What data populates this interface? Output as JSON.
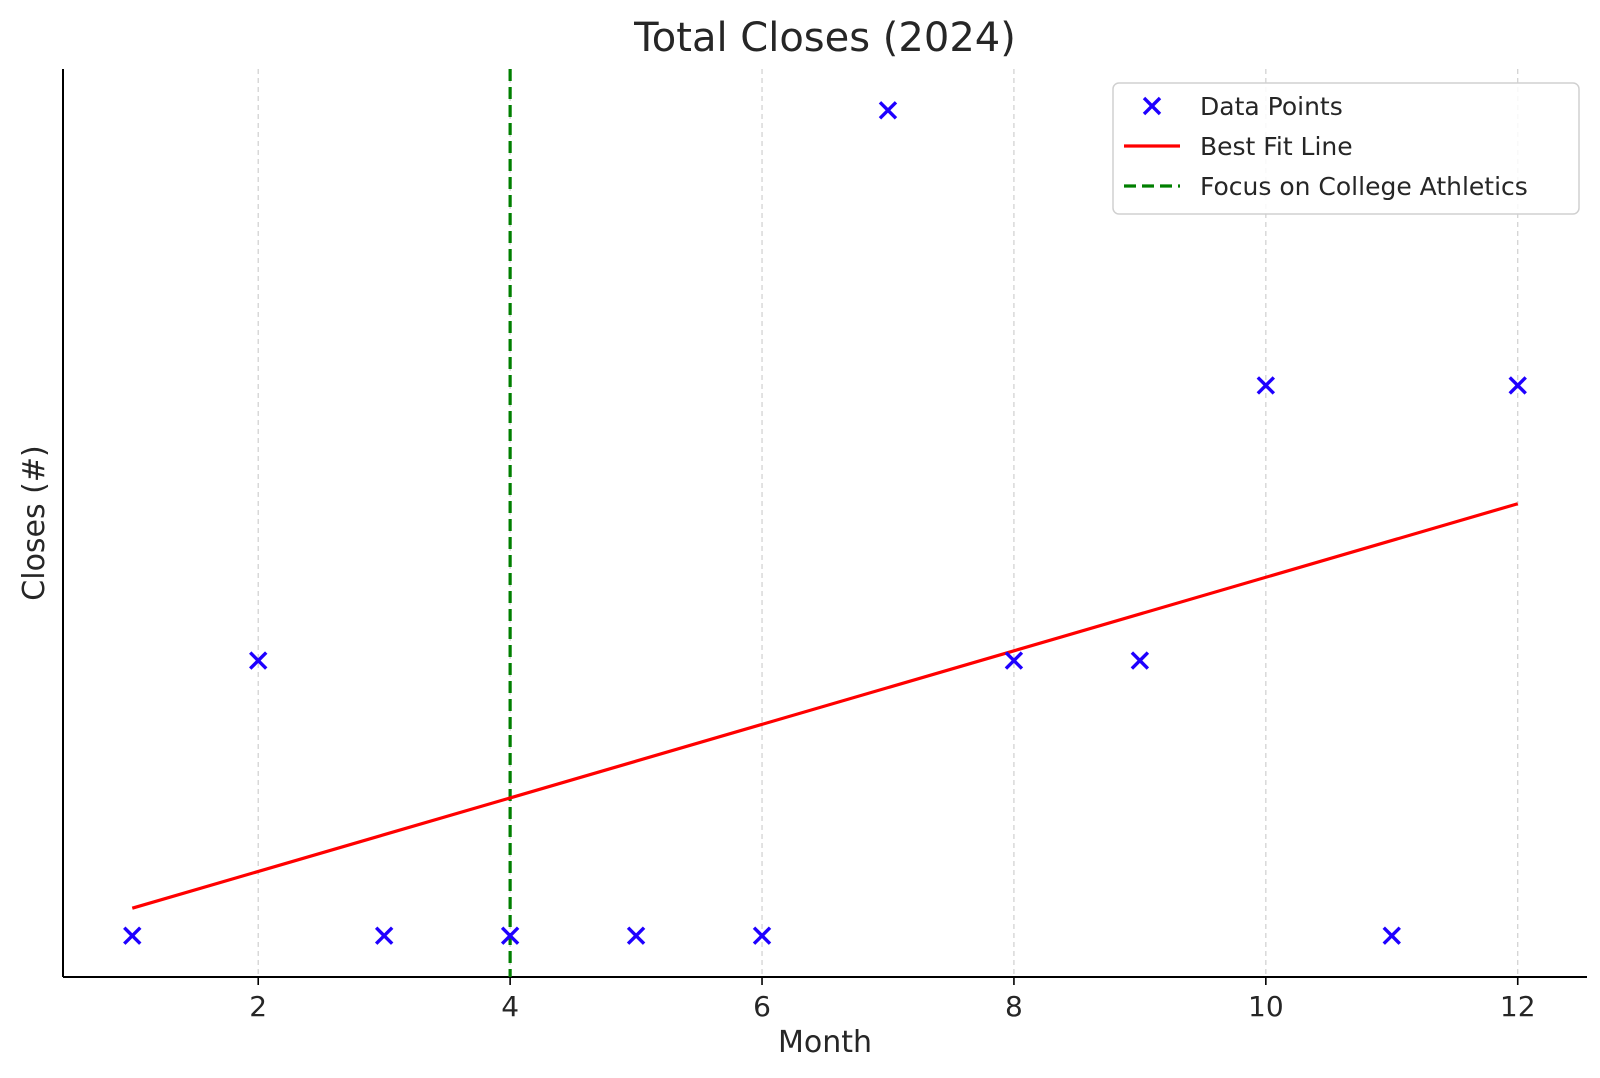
{
  "chart_data": {
    "type": "scatter",
    "title": "Total Closes (2024)",
    "xlabel": "Month",
    "ylabel": "Closes (#)",
    "xlim": [
      0.45,
      12.55
    ],
    "ylim": [
      -0.15,
      3.15
    ],
    "x_ticks": [
      2,
      4,
      6,
      8,
      10,
      12
    ],
    "x_tick_labels": [
      "2",
      "4",
      "6",
      "8",
      "10",
      "12"
    ],
    "y_ticks_shown": false,
    "grid": "vertical dashed at x ticks",
    "legend_position": "top-right",
    "series": [
      {
        "name": "Data Points",
        "type": "scatter",
        "marker": "x",
        "color": "#1f00ff",
        "x": [
          1,
          2,
          3,
          4,
          5,
          6,
          7,
          8,
          9,
          10,
          11,
          12
        ],
        "y": [
          0,
          1,
          0,
          0,
          0,
          0,
          3,
          1,
          1,
          2,
          0,
          2
        ]
      },
      {
        "name": "Best Fit Line",
        "type": "line",
        "color": "#ff0000",
        "x": [
          1,
          12
        ],
        "y": [
          0.1,
          1.57
        ]
      },
      {
        "name": "Focus on College Athletics",
        "type": "vline",
        "style": "dashed",
        "color": "#007f00",
        "x": 4
      }
    ]
  }
}
